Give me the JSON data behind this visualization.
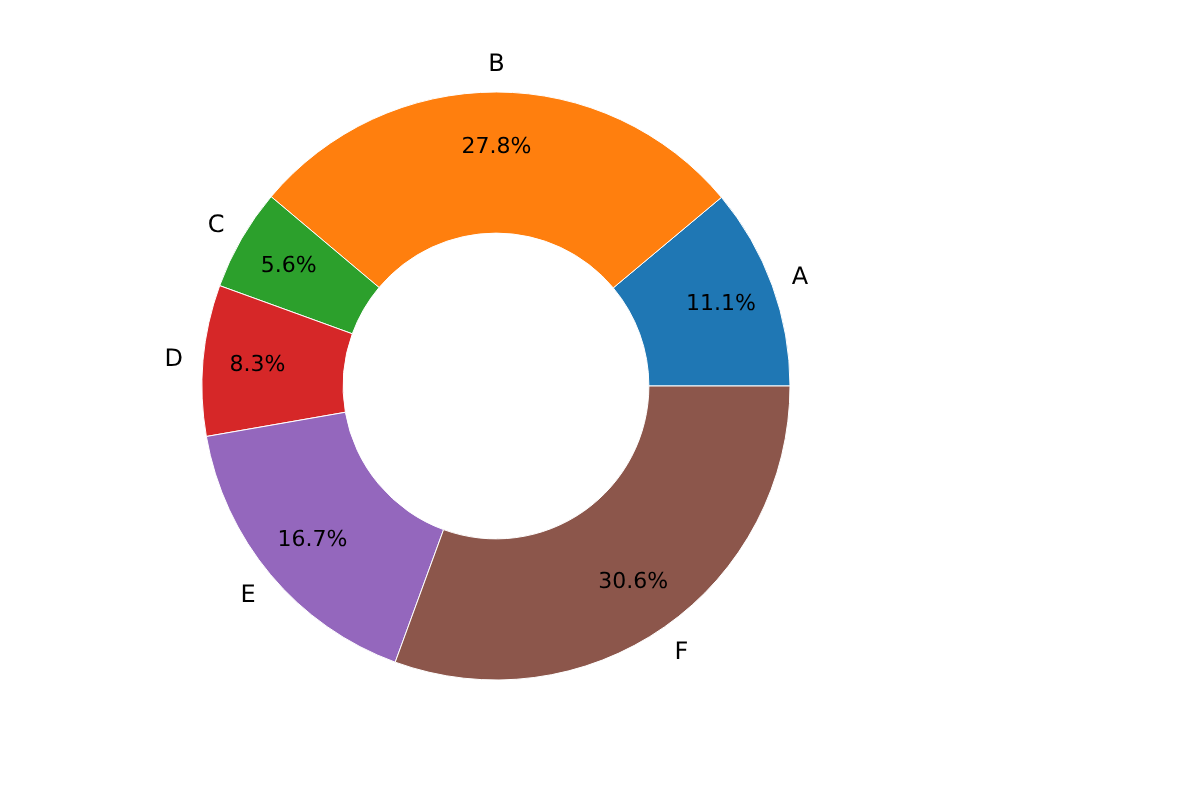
{
  "chart_data": {
    "type": "donut",
    "categories": [
      "A",
      "B",
      "C",
      "D",
      "E",
      "F"
    ],
    "values": [
      11.1,
      27.8,
      5.6,
      8.3,
      16.7,
      30.6
    ],
    "value_labels": [
      "11.1%",
      "27.8%",
      "5.6%",
      "8.3%",
      "16.7%",
      "30.6%"
    ],
    "colors": [
      "#1f77b4",
      "#ff7f0e",
      "#2ca02c",
      "#d62728",
      "#9467bd",
      "#8c564b"
    ]
  }
}
